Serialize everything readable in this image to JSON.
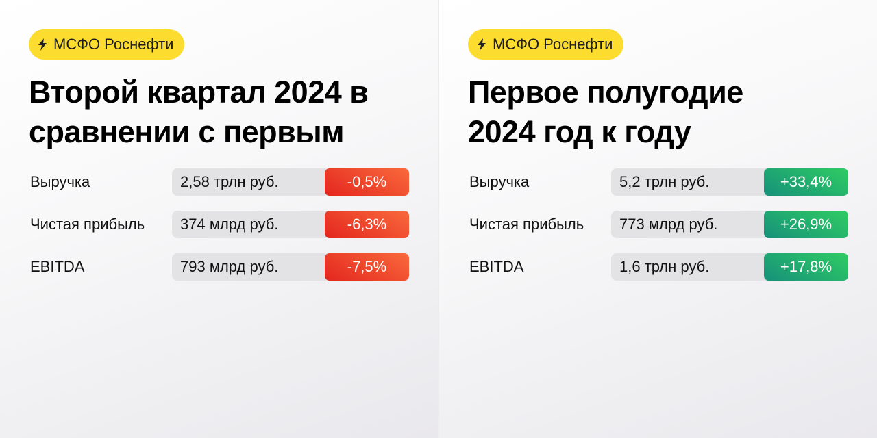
{
  "panels": [
    {
      "badge": "МСФО Роснефти",
      "title_lines": [
        "Второй квартал 2024 в",
        "сравнении с первым"
      ],
      "rows": [
        {
          "label": "Выручка",
          "value": "2,58 трлн руб.",
          "change": "-0,5%"
        },
        {
          "label": "Чистая прибыль",
          "value": "374 млрд руб.",
          "change": "-6,3%"
        },
        {
          "label": "EBITDA",
          "value": "793 млрд руб.",
          "change": "-7,5%"
        }
      ]
    },
    {
      "badge": "МСФО Роснефти",
      "title_lines": [
        "Первое полугодие",
        "2024 год к году"
      ],
      "rows": [
        {
          "label": "Выручка",
          "value": "5,2 трлн руб.",
          "change": "+33,4%"
        },
        {
          "label": "Чистая прибыль",
          "value": "773 млрд руб.",
          "change": "+26,9%"
        },
        {
          "label": "EBITDA",
          "value": "1,6 трлн руб.",
          "change": "+17,8%"
        }
      ]
    }
  ],
  "colors": {
    "badge": "#fbdc2f",
    "negative": "#e63a22",
    "positive": "#22b26c"
  }
}
